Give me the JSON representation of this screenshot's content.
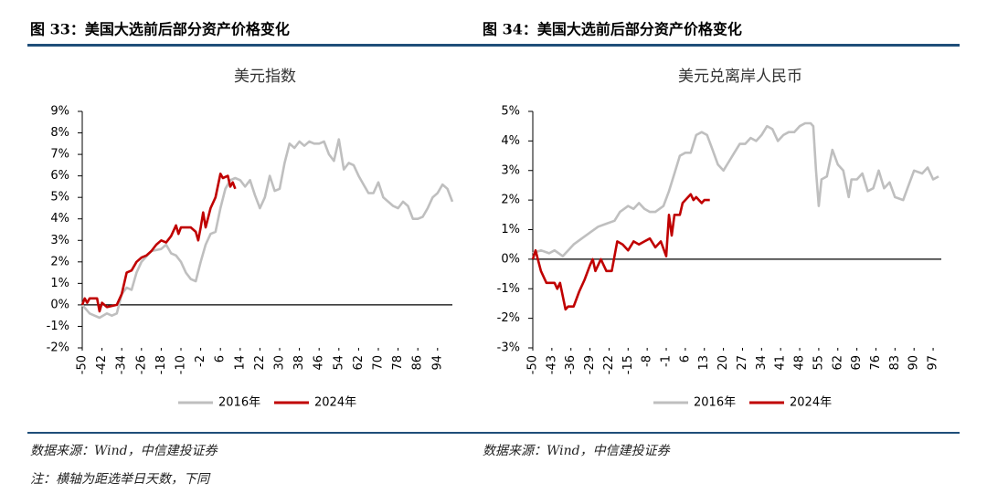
{
  "chart_data": [
    {
      "type": "line",
      "caption": "图 33：美国大选前后部分资产价格变化",
      "title": "美元指数",
      "source": "数据来源：Wind，中信建投证券",
      "xlim": [
        -50,
        100
      ],
      "xticks": [
        -50,
        -42,
        -34,
        -26,
        -18,
        -10,
        -2,
        6,
        14,
        22,
        30,
        38,
        46,
        54,
        62,
        70,
        78,
        86,
        94
      ],
      "ylim": [
        -2,
        9
      ],
      "yticks": [
        {
          "value": -2,
          "label": "-2%"
        },
        {
          "value": -1,
          "label": "-1%"
        },
        {
          "value": 0,
          "label": "0%"
        },
        {
          "value": 1,
          "label": "1%"
        },
        {
          "value": 2,
          "label": "2%"
        },
        {
          "value": 3,
          "label": "3%"
        },
        {
          "value": 4,
          "label": "4%"
        },
        {
          "value": 5,
          "label": "5%"
        },
        {
          "value": 6,
          "label": "6%"
        },
        {
          "value": 7,
          "label": "7%"
        },
        {
          "value": 8,
          "label": "8%"
        },
        {
          "value": 9,
          "label": "9%"
        }
      ],
      "grid": false,
      "legend": "bottom",
      "series": [
        {
          "name": "2016年",
          "color": "#bfbfbf",
          "x": [
            -50,
            -47,
            -45,
            -43,
            -40,
            -38,
            -36,
            -34,
            -32,
            -30,
            -28,
            -26,
            -22,
            -18,
            -16,
            -14,
            -12,
            -10,
            -8,
            -6,
            -4,
            -2,
            0,
            2,
            4,
            6,
            8,
            10,
            12,
            14,
            16,
            18,
            20,
            22,
            24,
            26,
            28,
            30,
            32,
            34,
            36,
            38,
            40,
            42,
            44,
            46,
            48,
            50,
            52,
            54,
            56,
            58,
            60,
            62,
            64,
            66,
            68,
            70,
            72,
            74,
            76,
            78,
            80,
            82,
            84,
            86,
            88,
            90,
            92,
            94,
            96,
            98,
            100
          ],
          "values": [
            0,
            -0.4,
            -0.5,
            -0.6,
            -0.4,
            -0.5,
            -0.4,
            0.5,
            0.8,
            0.7,
            1.5,
            2.0,
            2.5,
            2.6,
            2.8,
            2.4,
            2.3,
            2.0,
            1.5,
            1.2,
            1.1,
            2.0,
            2.8,
            3.3,
            3.4,
            4.5,
            5.4,
            5.8,
            5.9,
            5.8,
            5.5,
            5.8,
            5.1,
            4.5,
            5.0,
            6.0,
            5.3,
            5.4,
            6.6,
            7.5,
            7.3,
            7.6,
            7.4,
            7.6,
            7.5,
            7.5,
            7.6,
            7.0,
            6.7,
            7.7,
            6.3,
            6.6,
            6.5,
            6.0,
            5.6,
            5.2,
            5.2,
            5.7,
            5.0,
            4.8,
            4.6,
            4.5,
            4.8,
            4.6,
            4.0,
            4.0,
            4.1,
            4.5,
            5.0,
            5.2,
            5.6,
            5.4,
            4.8
          ]
        },
        {
          "name": "2024年",
          "color": "#c00000",
          "x": [
            -50,
            -49,
            -48,
            -47,
            -44,
            -43,
            -42,
            -40,
            -36,
            -34,
            -32,
            -30,
            -28,
            -26,
            -24,
            -22,
            -20,
            -18,
            -16,
            -14,
            -12,
            -11,
            -10,
            -6,
            -4,
            -3,
            -2,
            -1,
            0,
            2,
            4,
            6,
            7,
            9,
            10,
            11,
            12
          ],
          "values": [
            0,
            0.3,
            0.1,
            0.3,
            0.3,
            -0.3,
            0.1,
            -0.1,
            0,
            0.5,
            1.5,
            1.6,
            2.0,
            2.2,
            2.3,
            2.5,
            2.8,
            3.0,
            2.9,
            3.2,
            3.7,
            3.3,
            3.6,
            3.6,
            3.4,
            3.0,
            3.6,
            4.3,
            3.6,
            4.5,
            5.0,
            6.1,
            5.9,
            6.0,
            5.5,
            5.7,
            5.4
          ]
        }
      ]
    },
    {
      "type": "line",
      "caption": "图 34：美国大选前后部分资产价格变化",
      "title": "美元兑离岸人民币",
      "source": "数据来源：Wind，中信建投证券",
      "xlim": [
        -50,
        100
      ],
      "xticks": [
        -50,
        -43,
        -36,
        -29,
        -22,
        -15,
        -8,
        -1,
        6,
        13,
        20,
        27,
        34,
        41,
        48,
        55,
        62,
        69,
        76,
        83,
        90,
        97
      ],
      "ylim": [
        -3,
        5
      ],
      "yticks": [
        {
          "value": -3,
          "label": "-3%"
        },
        {
          "value": -2,
          "label": "-2%"
        },
        {
          "value": -1,
          "label": "-1%"
        },
        {
          "value": 0,
          "label": "0%"
        },
        {
          "value": 1,
          "label": "1%"
        },
        {
          "value": 2,
          "label": "2%"
        },
        {
          "value": 3,
          "label": "3%"
        },
        {
          "value": 4,
          "label": "4%"
        },
        {
          "value": 5,
          "label": "5%"
        }
      ],
      "grid": false,
      "legend": "bottom",
      "series": [
        {
          "name": "2016年",
          "color": "#bfbfbf",
          "x": [
            -50,
            -47,
            -44,
            -42,
            -39,
            -37,
            -35,
            -32,
            -29,
            -26,
            -23,
            -20,
            -18,
            -15,
            -13,
            -11,
            -9,
            -7,
            -5,
            -2,
            0,
            2,
            4,
            6,
            8,
            10,
            12,
            14,
            16,
            18,
            20,
            22,
            24,
            26,
            28,
            30,
            32,
            34,
            36,
            38,
            40,
            42,
            44,
            46,
            48,
            50,
            52,
            53,
            54,
            55,
            56,
            58,
            60,
            62,
            64,
            66,
            67,
            69,
            71,
            73,
            75,
            77,
            79,
            81,
            83,
            86,
            88,
            90,
            93,
            95,
            97,
            99
          ],
          "values": [
            0.2,
            0.3,
            0.2,
            0.3,
            0.1,
            0.3,
            0.5,
            0.7,
            0.9,
            1.1,
            1.2,
            1.3,
            1.6,
            1.8,
            1.7,
            1.9,
            1.7,
            1.6,
            1.6,
            1.8,
            2.3,
            2.9,
            3.5,
            3.6,
            3.6,
            4.2,
            4.3,
            4.2,
            3.7,
            3.2,
            3.0,
            3.3,
            3.6,
            3.9,
            3.9,
            4.1,
            4.0,
            4.2,
            4.5,
            4.4,
            4.0,
            4.2,
            4.3,
            4.3,
            4.5,
            4.6,
            4.6,
            4.5,
            3.0,
            1.8,
            2.7,
            2.8,
            3.7,
            3.2,
            3.0,
            2.1,
            2.7,
            2.7,
            2.9,
            2.3,
            2.4,
            3.0,
            2.4,
            2.6,
            2.1,
            2.0,
            2.5,
            3.0,
            2.9,
            3.1,
            2.7,
            2.8
          ]
        },
        {
          "name": "2024年",
          "color": "#c00000",
          "x": [
            -50,
            -49,
            -47,
            -45,
            -42,
            -41,
            -40,
            -38,
            -37,
            -35,
            -33,
            -31,
            -29,
            -28,
            -27,
            -25,
            -23,
            -21,
            -19,
            -17,
            -15,
            -13,
            -11,
            -9,
            -7,
            -5,
            -3,
            -1,
            0,
            1,
            2,
            4,
            5,
            7,
            8,
            9,
            10,
            12,
            13,
            15
          ],
          "values": [
            0,
            0.3,
            -0.4,
            -0.8,
            -0.8,
            -1.0,
            -0.8,
            -1.7,
            -1.6,
            -1.6,
            -1.1,
            -0.7,
            -0.2,
            0,
            -0.4,
            0,
            -0.4,
            -0.4,
            0.6,
            0.5,
            0.3,
            0.6,
            0.5,
            0.6,
            0.7,
            0.4,
            0.6,
            0.1,
            1.5,
            0.8,
            1.5,
            1.5,
            1.9,
            2.1,
            2.2,
            2.0,
            2.1,
            1.9,
            2.0,
            2.0
          ]
        }
      ]
    }
  ],
  "note": "注：横轴为距选举日天数，下同"
}
